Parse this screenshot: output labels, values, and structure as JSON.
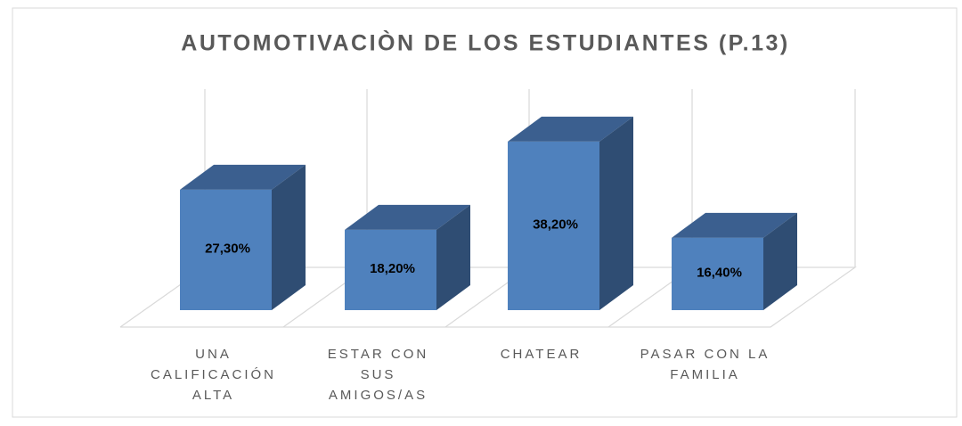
{
  "chart_data": {
    "type": "bar3d",
    "title": "AUTOMOTIVACIÒN DE LOS ESTUDIANTES (P.13)",
    "categories": [
      "UNA CALIFICACIÓN ALTA",
      "ESTAR CON SUS AMIGOS/AS",
      "CHATEAR",
      "PASAR CON LA FAMILIA"
    ],
    "values": [
      27.3,
      18.2,
      38.2,
      16.4
    ],
    "value_labels": [
      "27,30%",
      "18,20%",
      "38,20%",
      "16,40%"
    ],
    "color": "#4f81bd"
  }
}
